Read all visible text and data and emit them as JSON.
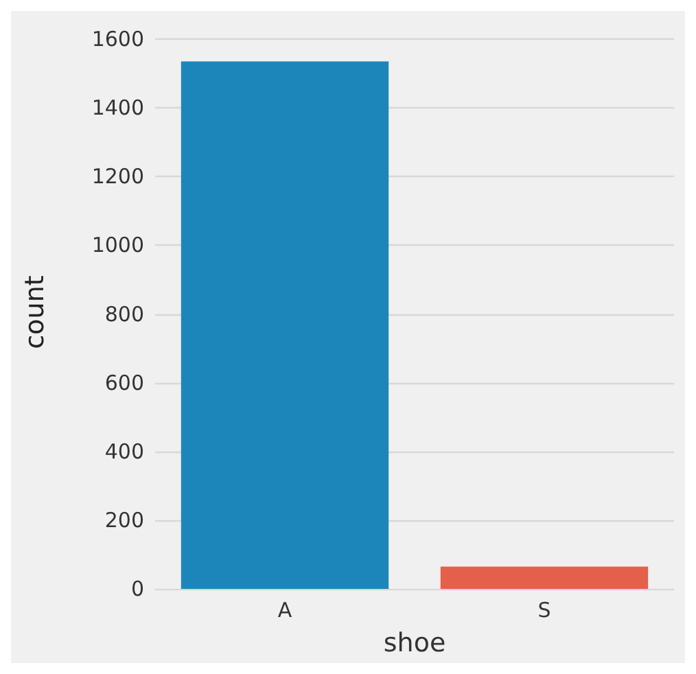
{
  "chart_data": {
    "type": "bar",
    "xlabel": "shoe",
    "ylabel": "count",
    "categories": [
      "A",
      "S"
    ],
    "values": [
      1535,
      65
    ],
    "colors": [
      "#1c86bb",
      "#e5604a"
    ],
    "ylim": [
      0,
      1610
    ],
    "yticks": [
      0,
      200,
      400,
      600,
      800,
      1000,
      1200,
      1400,
      1600
    ],
    "grid": "y"
  }
}
